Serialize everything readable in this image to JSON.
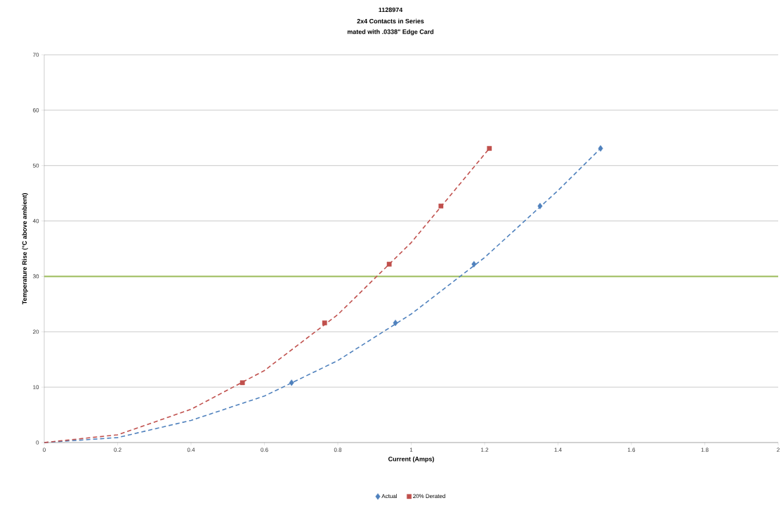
{
  "chart_data": {
    "type": "scatter",
    "title": "1128974",
    "subtitle": "2x4 Contacts in Series",
    "annotations": [
      "mated with .0338\" Edge Card"
    ],
    "xlabel": "Current (Amps)",
    "ylabel": "Temperature Rise (°C above ambient)",
    "xlim": [
      0,
      2
    ],
    "xticks": [
      0,
      0.2,
      0.4,
      0.6,
      0.8,
      1,
      1.2,
      1.4,
      1.6,
      1.8,
      2
    ],
    "ylim": [
      0,
      70
    ],
    "yticks": [
      0,
      10,
      20,
      30,
      40,
      50,
      60,
      70
    ],
    "grid": "y",
    "legend": "bottom",
    "ref_lines": [
      {
        "axis": "y",
        "value": 30,
        "color": "#9bbb59"
      }
    ],
    "series": [
      {
        "type": "line",
        "color": "#4f81bd",
        "line_style": "dashed",
        "x": [
          0,
          0.2,
          0.4,
          0.6,
          0.8,
          1.0,
          1.2,
          1.4,
          1.516
        ],
        "values": [
          0,
          0.9,
          4.0,
          8.4,
          14.8,
          23.2,
          33.4,
          45.5,
          53.1
        ]
      },
      {
        "type": "line",
        "color": "#c0504d",
        "line_style": "dashed",
        "x": [
          0,
          0.2,
          0.4,
          0.6,
          0.8,
          1.0,
          1.213
        ],
        "values": [
          0,
          1.4,
          6.0,
          13.0,
          23.1,
          36.1,
          53.1
        ]
      },
      {
        "name": "Actual",
        "color": "#4f81bd",
        "marker": "diamond",
        "x": [
          0.674,
          0.957,
          1.171,
          1.351,
          1.516
        ],
        "values": [
          10.8,
          21.6,
          32.2,
          42.7,
          53.1
        ]
      },
      {
        "name": "20% Derated",
        "color": "#c0504d",
        "marker": "square",
        "x": [
          0.54,
          0.764,
          0.94,
          1.081,
          1.213
        ],
        "values": [
          10.8,
          21.6,
          32.2,
          42.7,
          53.1
        ]
      }
    ]
  }
}
